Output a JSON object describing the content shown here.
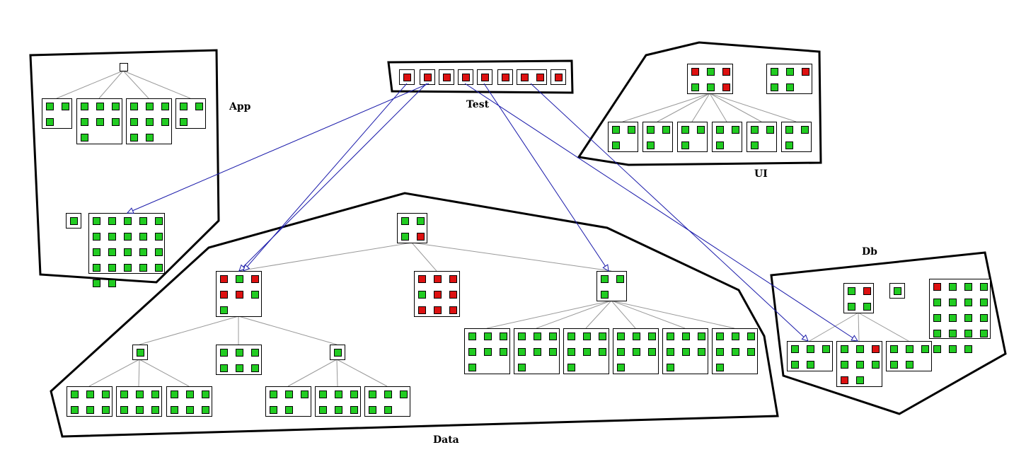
{
  "colors": {
    "pass": "#22cc22",
    "fail": "#dd1111",
    "empty": "#ffffff",
    "dependency": "#1a1aaa",
    "tree": "#999999",
    "outline": "#000000"
  },
  "components": {
    "app": {
      "label": "App"
    },
    "test": {
      "label": "Test"
    },
    "ui": {
      "label": "UI"
    },
    "data": {
      "label": "Data"
    },
    "db": {
      "label": "Db"
    }
  },
  "packages": {
    "app_root": [
      "empty"
    ],
    "app_c1": [
      "pass",
      "pass",
      "pass"
    ],
    "app_c2": [
      "pass",
      "pass",
      "pass",
      "pass",
      "pass",
      "pass",
      "pass"
    ],
    "app_c3": [
      "pass",
      "pass",
      "pass",
      "pass",
      "pass",
      "pass",
      "pass",
      "pass"
    ],
    "app_c4": [
      "pass",
      "pass",
      "pass"
    ],
    "app_single": [
      "pass"
    ],
    "app_big": [
      "pass",
      "pass",
      "pass",
      "pass",
      "pass",
      "pass",
      "pass",
      "pass",
      "pass",
      "pass",
      "pass",
      "pass",
      "pass",
      "pass",
      "pass",
      "pass",
      "pass",
      "pass",
      "pass",
      "pass",
      "pass",
      "pass"
    ],
    "test_1": [
      "fail"
    ],
    "test_2": [
      "fail"
    ],
    "test_3": [
      "fail"
    ],
    "test_4": [
      "fail"
    ],
    "test_5": [
      "fail"
    ],
    "test_6": [
      "fail"
    ],
    "test_7": [
      "fail",
      "fail"
    ],
    "test_8": [
      "fail"
    ],
    "ui_a": [
      "fail",
      "pass",
      "fail",
      "pass",
      "pass",
      "fail"
    ],
    "ui_b": [
      "pass",
      "pass",
      "fail",
      "pass",
      "pass"
    ],
    "ui_c1": [
      "pass",
      "pass",
      "pass"
    ],
    "ui_c2": [
      "pass",
      "pass",
      "pass"
    ],
    "ui_c3": [
      "pass",
      "pass",
      "pass"
    ],
    "ui_c4": [
      "pass",
      "pass",
      "pass"
    ],
    "ui_c5": [
      "pass",
      "pass",
      "pass"
    ],
    "ui_c6": [
      "pass",
      "pass",
      "pass"
    ],
    "data_root": [
      "pass",
      "pass",
      "pass",
      "fail"
    ],
    "data_l": [
      "fail",
      "pass",
      "fail",
      "fail",
      "fail",
      "pass",
      "pass"
    ],
    "data_m": [
      "fail",
      "fail",
      "fail",
      "pass",
      "fail",
      "fail",
      "fail",
      "fail",
      "fail"
    ],
    "data_r": [
      "pass",
      "pass",
      "pass"
    ],
    "data_l1": [
      "pass"
    ],
    "data_l2": [
      "pass",
      "pass",
      "pass",
      "pass",
      "pass",
      "pass"
    ],
    "data_l3": [
      "pass"
    ],
    "data_l1a": [
      "pass",
      "pass",
      "pass",
      "pass",
      "pass",
      "pass"
    ],
    "data_l1b": [
      "pass",
      "pass",
      "pass",
      "pass",
      "pass",
      "pass"
    ],
    "data_l1c": [
      "pass",
      "pass",
      "pass",
      "pass",
      "pass",
      "pass"
    ],
    "data_l3a": [
      "pass",
      "pass",
      "pass",
      "pass",
      "pass"
    ],
    "data_l3b": [
      "pass",
      "pass",
      "pass",
      "pass",
      "pass",
      "pass"
    ],
    "data_l3c": [
      "pass",
      "pass",
      "pass",
      "pass",
      "pass"
    ],
    "data_r1": [
      "pass",
      "pass",
      "pass",
      "pass",
      "pass",
      "pass",
      "pass"
    ],
    "data_r2": [
      "pass",
      "pass",
      "pass",
      "pass",
      "pass",
      "pass",
      "pass"
    ],
    "data_r3": [
      "pass",
      "pass",
      "pass",
      "pass",
      "pass",
      "pass",
      "pass"
    ],
    "data_r4": [
      "pass",
      "pass",
      "pass",
      "pass",
      "pass",
      "pass",
      "pass"
    ],
    "data_r5": [
      "pass",
      "pass",
      "pass",
      "pass",
      "pass",
      "pass",
      "pass"
    ],
    "data_r6": [
      "pass",
      "pass",
      "pass",
      "pass",
      "pass",
      "pass",
      "pass"
    ],
    "db_root": [
      "pass",
      "fail",
      "pass",
      "pass"
    ],
    "db_single": [
      "pass"
    ],
    "db_big": [
      "fail",
      "pass",
      "pass",
      "pass",
      "pass",
      "pass",
      "pass",
      "pass",
      "pass",
      "pass",
      "pass",
      "pass",
      "pass",
      "pass",
      "pass",
      "pass",
      "pass",
      "pass",
      "pass"
    ],
    "db_c1": [
      "pass",
      "pass",
      "pass",
      "pass",
      "pass"
    ],
    "db_c2": [
      "pass",
      "pass",
      "fail",
      "pass",
      "pass",
      "pass",
      "fail",
      "pass"
    ],
    "db_c3": [
      "pass",
      "pass",
      "pass",
      "pass",
      "pass"
    ]
  }
}
